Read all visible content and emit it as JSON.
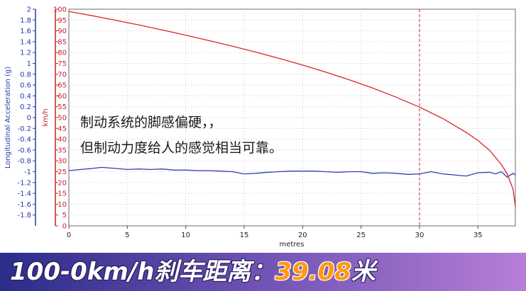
{
  "chart_data": {
    "type": "line",
    "xlabel": "metres",
    "x_ticks": [
      0,
      5,
      10,
      15,
      20,
      25,
      30,
      35
    ],
    "xlim": [
      0,
      38.2
    ],
    "marker_x": 30,
    "left_axis": {
      "label": "Longitudinal Acceleration (g)",
      "ticks": [
        "2",
        "1.8",
        "1.6",
        "1.4",
        "1.2",
        "1",
        "0.8",
        "0.6",
        "0.4",
        "0.2",
        "0",
        "-0.2",
        "-0.4",
        "-0.6",
        "-0.8",
        "-1",
        "-1.2",
        "-1.4",
        "-1.6",
        "-1.8"
      ],
      "color": "#2a3aa8"
    },
    "right_axis": {
      "label": "km/h",
      "ticks": [
        "100",
        "95",
        "90",
        "85",
        "80",
        "75",
        "70",
        "65",
        "60",
        "55",
        "50",
        "45",
        "40",
        "35",
        "30",
        "25",
        "20",
        "15",
        "10",
        "5",
        "0"
      ],
      "ylim": [
        0,
        100
      ],
      "color": "#c8202a"
    },
    "series": [
      {
        "axis": "speed",
        "color": "#d9262c",
        "x": [
          0,
          2,
          4,
          6,
          8,
          10,
          12,
          14,
          16,
          18,
          20,
          22,
          24,
          26,
          28,
          30,
          32,
          34,
          35,
          36,
          37,
          37.5,
          38,
          38.2
        ],
        "y": [
          99,
          97,
          94.9,
          92.7,
          90.4,
          88,
          85.5,
          82.9,
          80.2,
          77.3,
          74.2,
          70.9,
          67.4,
          63.6,
          59.4,
          54.8,
          49.5,
          43.1,
          39.4,
          34.8,
          28.4,
          24,
          17,
          9
        ]
      },
      {
        "axis": "acceleration",
        "color": "#2f3fae",
        "x": [
          0,
          1,
          2,
          2.8,
          4,
          5,
          6,
          7,
          8,
          9,
          10,
          11,
          12,
          13,
          14,
          15,
          16,
          17,
          18,
          19,
          20,
          21,
          22,
          23,
          24,
          25,
          26,
          27,
          28,
          29,
          30,
          31,
          32,
          33,
          34,
          35,
          36,
          36.5,
          37,
          37.5,
          38,
          38.2
        ],
        "y": [
          -0.98,
          -0.96,
          -0.94,
          -0.92,
          -0.94,
          -0.96,
          -0.95,
          -0.96,
          -0.95,
          -0.97,
          -0.97,
          -0.98,
          -0.98,
          -0.99,
          -1.0,
          -1.04,
          -1.03,
          -1.01,
          -1.0,
          -0.99,
          -0.99,
          -0.99,
          -1.0,
          -1.01,
          -1.0,
          -1.0,
          -1.03,
          -1.02,
          -1.03,
          -1.05,
          -1.04,
          -1.0,
          -1.04,
          -1.06,
          -1.08,
          -1.02,
          -1.01,
          -1.04,
          -1.0,
          -1.1,
          -1.03,
          -1.06
        ]
      }
    ]
  },
  "annotation": {
    "line1": "制动系统的脚感偏硬，，",
    "line2": "但制动力度给人的感觉相当可靠。"
  },
  "banner": {
    "label": "100-0km/h刹车距离：",
    "value": "39.08",
    "unit": "米"
  }
}
